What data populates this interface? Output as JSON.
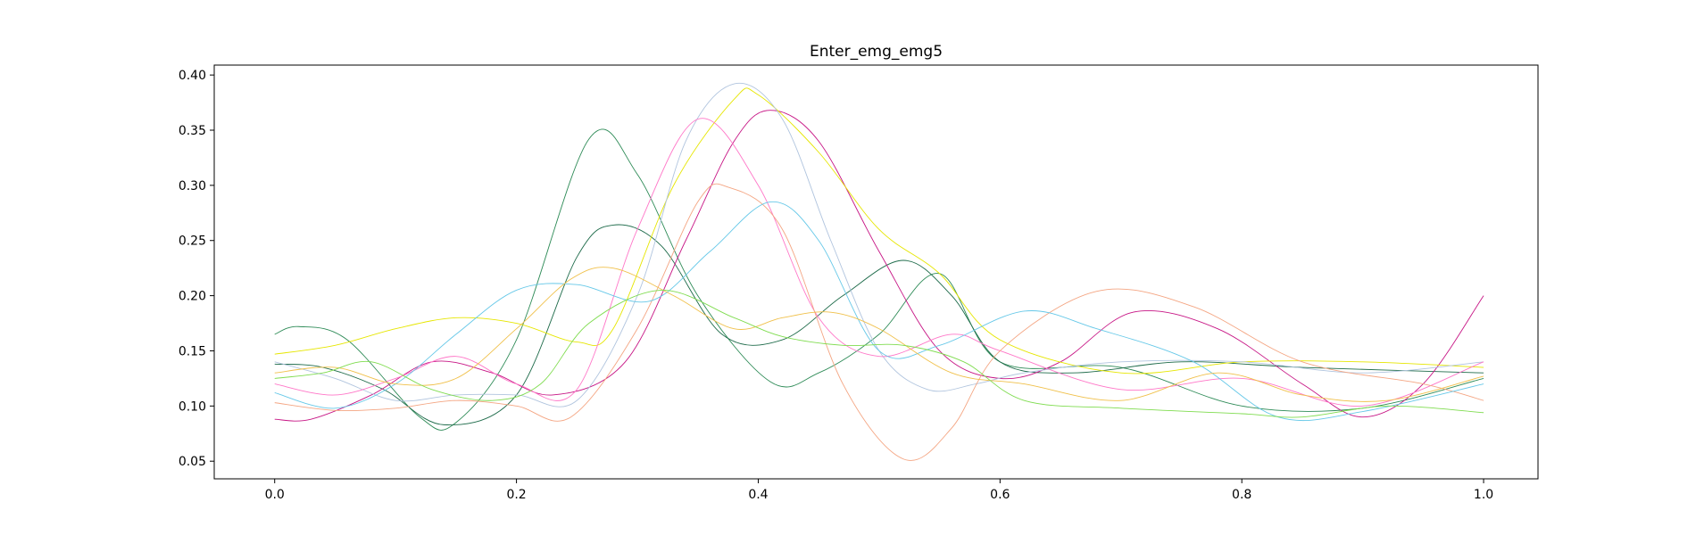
{
  "chart_data": {
    "type": "line",
    "title": "Enter_emg_emg5",
    "xlabel": "",
    "ylabel": "",
    "xlim": [
      -0.05,
      1.045
    ],
    "ylim": [
      0.034,
      0.409
    ],
    "xticks": [
      "0.0",
      "0.2",
      "0.4",
      "0.6",
      "0.8",
      "1.0"
    ],
    "xtick_values": [
      0.0,
      0.2,
      0.4,
      0.6,
      0.8,
      1.0
    ],
    "yticks": [
      "0.05",
      "0.10",
      "0.15",
      "0.20",
      "0.25",
      "0.30",
      "0.35",
      "0.40"
    ],
    "ytick_values": [
      0.05,
      0.1,
      0.15,
      0.2,
      0.25,
      0.3,
      0.35,
      0.4
    ],
    "grid": false,
    "legend": "none",
    "series": [
      {
        "color": "#2e8b57",
        "x": [
          0.0,
          0.02,
          0.06,
          0.12,
          0.15,
          0.2,
          0.26,
          0.3,
          0.35,
          0.41,
          0.45,
          0.5,
          0.55,
          0.6,
          0.7,
          0.8,
          0.9,
          1.0
        ],
        "y": [
          0.165,
          0.172,
          0.16,
          0.09,
          0.085,
          0.16,
          0.342,
          0.31,
          0.2,
          0.122,
          0.13,
          0.165,
          0.22,
          0.14,
          0.135,
          0.1,
          0.098,
          0.125
        ]
      },
      {
        "color": "#1e6b4a",
        "x": [
          0.0,
          0.04,
          0.09,
          0.14,
          0.2,
          0.25,
          0.28,
          0.32,
          0.37,
          0.42,
          0.47,
          0.52,
          0.56,
          0.6,
          0.66,
          0.75,
          0.85,
          1.0
        ],
        "y": [
          0.138,
          0.135,
          0.115,
          0.083,
          0.11,
          0.235,
          0.264,
          0.245,
          0.165,
          0.16,
          0.2,
          0.232,
          0.2,
          0.14,
          0.13,
          0.14,
          0.135,
          0.13
        ]
      },
      {
        "color": "#c71585",
        "x": [
          0.0,
          0.03,
          0.08,
          0.13,
          0.18,
          0.23,
          0.29,
          0.34,
          0.38,
          0.41,
          0.45,
          0.5,
          0.55,
          0.6,
          0.65,
          0.71,
          0.78,
          0.85,
          0.9,
          0.95,
          1.0
        ],
        "y": [
          0.088,
          0.088,
          0.11,
          0.14,
          0.13,
          0.11,
          0.14,
          0.25,
          0.34,
          0.368,
          0.34,
          0.24,
          0.15,
          0.125,
          0.14,
          0.185,
          0.17,
          0.12,
          0.09,
          0.12,
          0.2
        ]
      },
      {
        "color": "#e6e600",
        "x": [
          0.0,
          0.05,
          0.1,
          0.15,
          0.2,
          0.25,
          0.28,
          0.33,
          0.38,
          0.4,
          0.45,
          0.5,
          0.55,
          0.6,
          0.7,
          0.8,
          0.9,
          1.0
        ],
        "y": [
          0.147,
          0.155,
          0.17,
          0.18,
          0.175,
          0.158,
          0.17,
          0.3,
          0.378,
          0.382,
          0.33,
          0.26,
          0.22,
          0.16,
          0.13,
          0.14,
          0.14,
          0.135
        ]
      },
      {
        "color": "#b0c4de",
        "x": [
          0.0,
          0.05,
          0.1,
          0.15,
          0.2,
          0.25,
          0.3,
          0.34,
          0.38,
          0.42,
          0.46,
          0.5,
          0.54,
          0.58,
          0.62,
          0.7,
          0.8,
          0.9,
          1.0
        ],
        "y": [
          0.14,
          0.125,
          0.105,
          0.11,
          0.11,
          0.105,
          0.2,
          0.34,
          0.392,
          0.36,
          0.25,
          0.15,
          0.115,
          0.12,
          0.13,
          0.14,
          0.14,
          0.13,
          0.14
        ]
      },
      {
        "color": "#ff77c8",
        "x": [
          0.0,
          0.05,
          0.1,
          0.15,
          0.2,
          0.25,
          0.3,
          0.35,
          0.4,
          0.45,
          0.5,
          0.56,
          0.6,
          0.7,
          0.8,
          0.9,
          1.0
        ],
        "y": [
          0.12,
          0.11,
          0.125,
          0.145,
          0.12,
          0.115,
          0.26,
          0.36,
          0.3,
          0.18,
          0.145,
          0.165,
          0.15,
          0.115,
          0.125,
          0.1,
          0.14
        ]
      },
      {
        "color": "#f4a582",
        "x": [
          0.0,
          0.05,
          0.1,
          0.15,
          0.2,
          0.245,
          0.3,
          0.35,
          0.376,
          0.42,
          0.47,
          0.52,
          0.56,
          0.6,
          0.68,
          0.76,
          0.85,
          0.95,
          1.0
        ],
        "y": [
          0.103,
          0.096,
          0.098,
          0.105,
          0.1,
          0.09,
          0.17,
          0.285,
          0.298,
          0.26,
          0.12,
          0.052,
          0.08,
          0.15,
          0.204,
          0.19,
          0.14,
          0.12,
          0.105
        ]
      },
      {
        "color": "#66c8e8",
        "x": [
          0.0,
          0.05,
          0.1,
          0.15,
          0.2,
          0.25,
          0.31,
          0.36,
          0.41,
          0.45,
          0.5,
          0.55,
          0.62,
          0.68,
          0.76,
          0.83,
          0.9,
          1.0
        ],
        "y": [
          0.112,
          0.098,
          0.12,
          0.165,
          0.205,
          0.21,
          0.195,
          0.24,
          0.285,
          0.25,
          0.15,
          0.155,
          0.186,
          0.17,
          0.14,
          0.09,
          0.095,
          0.12
        ]
      },
      {
        "color": "#f0c04a",
        "x": [
          0.0,
          0.05,
          0.1,
          0.15,
          0.2,
          0.245,
          0.28,
          0.33,
          0.38,
          0.42,
          0.46,
          0.5,
          0.56,
          0.62,
          0.7,
          0.78,
          0.85,
          0.92,
          1.0
        ],
        "y": [
          0.13,
          0.135,
          0.12,
          0.125,
          0.17,
          0.215,
          0.225,
          0.2,
          0.17,
          0.18,
          0.185,
          0.17,
          0.13,
          0.12,
          0.105,
          0.13,
          0.11,
          0.105,
          0.127
        ]
      },
      {
        "color": "#7fdc4f",
        "x": [
          0.0,
          0.04,
          0.08,
          0.13,
          0.18,
          0.22,
          0.26,
          0.32,
          0.38,
          0.42,
          0.47,
          0.52,
          0.57,
          0.62,
          0.7,
          0.8,
          0.85,
          0.92,
          1.0
        ],
        "y": [
          0.125,
          0.13,
          0.14,
          0.115,
          0.105,
          0.12,
          0.175,
          0.205,
          0.18,
          0.163,
          0.155,
          0.155,
          0.14,
          0.105,
          0.098,
          0.093,
          0.09,
          0.1,
          0.094
        ]
      }
    ]
  }
}
